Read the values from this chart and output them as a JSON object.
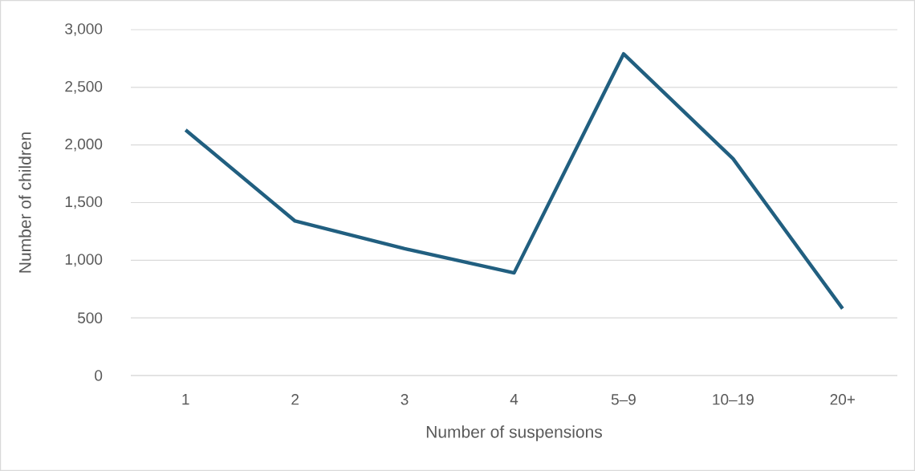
{
  "chart_data": {
    "type": "line",
    "xlabel": "Number of suspensions",
    "ylabel": "Number of children",
    "categories": [
      "1",
      "2",
      "3",
      "4",
      "5–9",
      "10–19",
      "20+"
    ],
    "values": [
      2130,
      1340,
      1100,
      890,
      2790,
      1880,
      580
    ],
    "color": "#215f80",
    "ylim": [
      0,
      3000
    ],
    "yticks": [
      0,
      500,
      {
        "value": 1000,
        "label": "1,000"
      },
      {
        "value": 1500,
        "label": "1,500"
      },
      {
        "value": 2000,
        "label": "2,000"
      },
      {
        "value": 2500,
        "label": "2,500"
      },
      {
        "value": 3000,
        "label": "3,000"
      }
    ],
    "grid": "y",
    "marker": "none",
    "line_style": "solid"
  }
}
